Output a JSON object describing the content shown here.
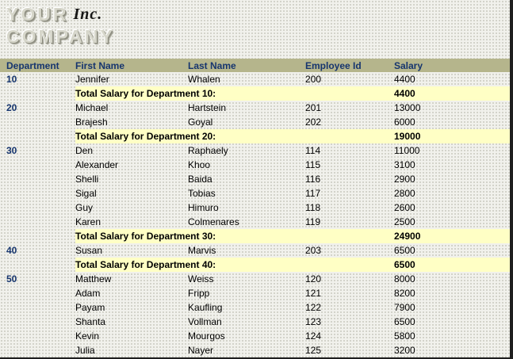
{
  "logo": {
    "line1": "YOUR",
    "line2": "COMPANY",
    "suffix": "Inc."
  },
  "colors": {
    "header_band": "#b5b58c",
    "header_text": "#16356e",
    "department_text": "#16356e",
    "total_row_background": "#ffffc5",
    "body_text": "#000000",
    "page_background": "#f1f1ec"
  },
  "table": {
    "headers": [
      "Department",
      "First Name",
      "Last Name",
      "Employee Id",
      "Salary"
    ],
    "rows": [
      {
        "type": "employee",
        "department": "10",
        "first": "Jennifer",
        "last": "Whalen",
        "id": "200",
        "salary": "4400"
      },
      {
        "type": "total",
        "label": "Total Salary for Department 10:",
        "salary": "4400"
      },
      {
        "type": "employee",
        "department": "20",
        "first": "Michael",
        "last": "Hartstein",
        "id": "201",
        "salary": "13000"
      },
      {
        "type": "employee",
        "department": "",
        "first": "Brajesh",
        "last": "Goyal",
        "id": "202",
        "salary": "6000"
      },
      {
        "type": "total",
        "label": "Total Salary for Department 20:",
        "salary": "19000"
      },
      {
        "type": "employee",
        "department": "30",
        "first": "Den",
        "last": "Raphaely",
        "id": "114",
        "salary": "11000"
      },
      {
        "type": "employee",
        "department": "",
        "first": "Alexander",
        "last": "Khoo",
        "id": "115",
        "salary": "3100"
      },
      {
        "type": "employee",
        "department": "",
        "first": "Shelli",
        "last": "Baida",
        "id": "116",
        "salary": "2900"
      },
      {
        "type": "employee",
        "department": "",
        "first": "Sigal",
        "last": "Tobias",
        "id": "117",
        "salary": "2800"
      },
      {
        "type": "employee",
        "department": "",
        "first": "Guy",
        "last": "Himuro",
        "id": "118",
        "salary": "2600"
      },
      {
        "type": "employee",
        "department": "",
        "first": "Karen",
        "last": "Colmenares",
        "id": "119",
        "salary": "2500"
      },
      {
        "type": "total",
        "label": "Total Salary for Department 30:",
        "salary": "24900"
      },
      {
        "type": "employee",
        "department": "40",
        "first": "Susan",
        "last": "Marvis",
        "id": "203",
        "salary": "6500"
      },
      {
        "type": "total",
        "label": "Total Salary for Department 40:",
        "salary": "6500"
      },
      {
        "type": "employee",
        "department": "50",
        "first": "Matthew",
        "last": "Weiss",
        "id": "120",
        "salary": "8000"
      },
      {
        "type": "employee",
        "department": "",
        "first": "Adam",
        "last": "Fripp",
        "id": "121",
        "salary": "8200"
      },
      {
        "type": "employee",
        "department": "",
        "first": "Payam",
        "last": "Kaufling",
        "id": "122",
        "salary": "7900"
      },
      {
        "type": "employee",
        "department": "",
        "first": "Shanta",
        "last": "Vollman",
        "id": "123",
        "salary": "6500"
      },
      {
        "type": "employee",
        "department": "",
        "first": "Kevin",
        "last": "Mourgos",
        "id": "124",
        "salary": "5800"
      },
      {
        "type": "employee",
        "department": "",
        "first": "Julia",
        "last": "Nayer",
        "id": "125",
        "salary": "3200"
      }
    ]
  }
}
